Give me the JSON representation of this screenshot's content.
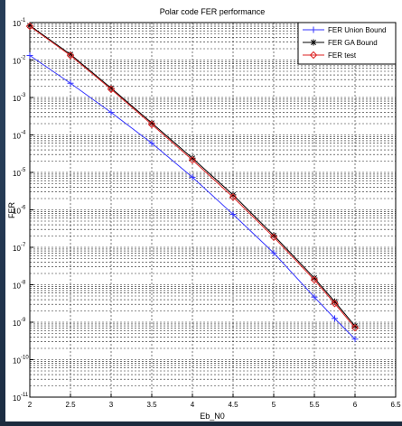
{
  "chart_data": {
    "type": "line",
    "title": "Polar code FER performance",
    "xlabel": "Eb_N0",
    "ylabel": "FER",
    "xlim": [
      2,
      6.5
    ],
    "ylim_log10": [
      -11,
      -1
    ],
    "y_scale": "log",
    "grid": true,
    "legend_position": "top-right",
    "x_ticks": [
      "2",
      "2.5",
      "3",
      "3.5",
      "4",
      "4.5",
      "5",
      "5.5",
      "6",
      "6.5"
    ],
    "y_tick_bases": [
      "10",
      "10",
      "10",
      "10",
      "10",
      "10",
      "10",
      "10",
      "10",
      "10",
      "10"
    ],
    "y_tick_exponents": [
      "-1",
      "-2",
      "-3",
      "-4",
      "-5",
      "-6",
      "-7",
      "-8",
      "-9",
      "-10",
      "-11"
    ],
    "x": [
      2.0,
      2.5,
      3.0,
      3.5,
      4.0,
      4.5,
      5.0,
      5.5,
      5.75,
      6.0
    ],
    "series": [
      {
        "name": "FER Union Bound",
        "color": "#3333ff",
        "marker": "plus",
        "log10_values": [
          -1.88,
          -2.62,
          -3.4,
          -4.22,
          -5.13,
          -6.12,
          -7.15,
          -8.33,
          -8.9,
          -9.45
        ]
      },
      {
        "name": "FER GA Bound",
        "color": "#000000",
        "marker": "star",
        "log10_values": [
          -1.08,
          -1.85,
          -2.75,
          -3.68,
          -4.62,
          -5.6,
          -6.68,
          -7.82,
          -8.45,
          -9.1
        ]
      },
      {
        "name": "FER test",
        "color": "#dd2222",
        "marker": "diamond",
        "log10_values": [
          -1.1,
          -1.88,
          -2.78,
          -3.72,
          -4.67,
          -5.66,
          -6.73,
          -7.87,
          -8.5,
          -9.15
        ]
      }
    ]
  }
}
